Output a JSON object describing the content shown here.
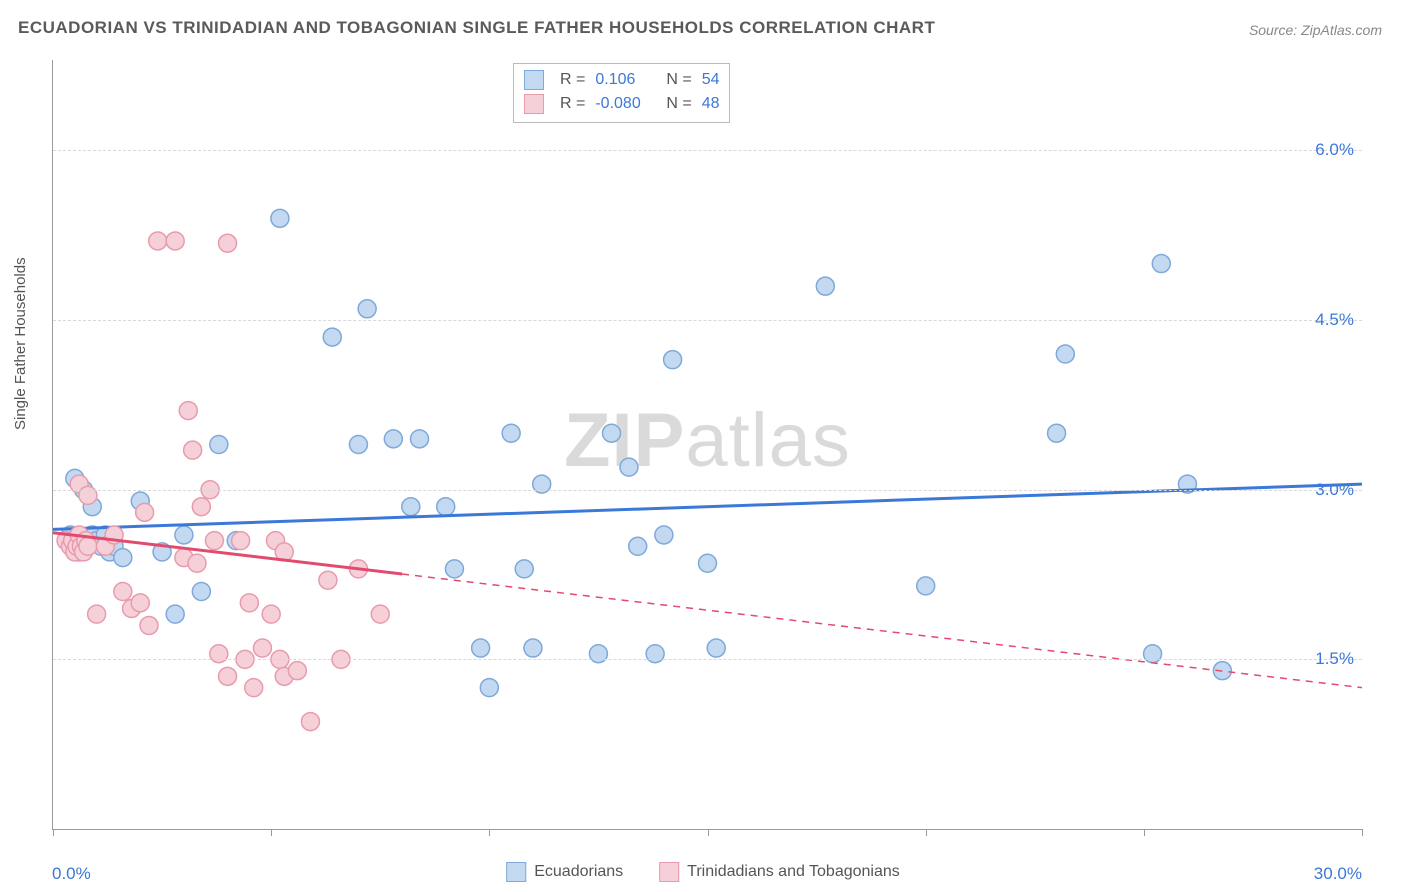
{
  "title": "ECUADORIAN VS TRINIDADIAN AND TOBAGONIAN SINGLE FATHER HOUSEHOLDS CORRELATION CHART",
  "source": "Source: ZipAtlas.com",
  "ylabel": "Single Father Households",
  "watermark_bold": "ZIP",
  "watermark_rest": "atlas",
  "chart": {
    "type": "scatter",
    "xlim": [
      0,
      30
    ],
    "ylim": [
      0,
      6.8
    ],
    "x_ticks": [
      0,
      5,
      10,
      15,
      20,
      25,
      30
    ],
    "y_ticks": [
      1.5,
      3.0,
      4.5,
      6.0
    ],
    "y_tick_labels": [
      "1.5%",
      "3.0%",
      "4.5%",
      "6.0%"
    ],
    "x_min_label": "0.0%",
    "x_max_label": "30.0%",
    "background_color": "#ffffff",
    "grid_color": "#d8d8d8",
    "marker_radius": 9,
    "marker_stroke_width": 1.5,
    "line_width": 3,
    "series": [
      {
        "name": "Ecuadorians",
        "color_fill": "#c3d9f2",
        "color_stroke": "#7fa9d8",
        "line_color": "#3b78d8",
        "R": "0.106",
        "N": "54",
        "trend_start_y": 2.65,
        "trend_end_y": 3.05,
        "trend_solid_until_x": 30,
        "points": [
          [
            0.4,
            2.6
          ],
          [
            0.5,
            2.5
          ],
          [
            0.6,
            2.45
          ],
          [
            0.7,
            2.55
          ],
          [
            0.8,
            2.5
          ],
          [
            0.9,
            2.6
          ],
          [
            1.0,
            2.55
          ],
          [
            1.1,
            2.5
          ],
          [
            1.2,
            2.6
          ],
          [
            1.3,
            2.45
          ],
          [
            0.5,
            3.1
          ],
          [
            0.7,
            3.0
          ],
          [
            0.9,
            2.85
          ],
          [
            1.4,
            2.5
          ],
          [
            1.6,
            2.4
          ],
          [
            2.0,
            2.9
          ],
          [
            2.5,
            2.45
          ],
          [
            2.8,
            1.9
          ],
          [
            3.0,
            2.6
          ],
          [
            3.4,
            2.1
          ],
          [
            3.8,
            3.4
          ],
          [
            4.2,
            2.55
          ],
          [
            5.2,
            5.4
          ],
          [
            6.4,
            4.35
          ],
          [
            7.0,
            3.4
          ],
          [
            7.2,
            4.6
          ],
          [
            7.8,
            3.45
          ],
          [
            8.2,
            2.85
          ],
          [
            8.4,
            3.45
          ],
          [
            9.0,
            2.85
          ],
          [
            9.2,
            2.3
          ],
          [
            9.8,
            1.6
          ],
          [
            10.0,
            1.25
          ],
          [
            10.5,
            3.5
          ],
          [
            10.8,
            2.3
          ],
          [
            11.0,
            1.6
          ],
          [
            11.2,
            3.05
          ],
          [
            12.8,
            3.5
          ],
          [
            12.5,
            1.55
          ],
          [
            13.2,
            3.2
          ],
          [
            13.4,
            2.5
          ],
          [
            13.8,
            1.55
          ],
          [
            14.0,
            2.6
          ],
          [
            14.2,
            4.15
          ],
          [
            15.0,
            2.35
          ],
          [
            15.2,
            1.6
          ],
          [
            17.7,
            4.8
          ],
          [
            20.0,
            2.15
          ],
          [
            23.0,
            3.5
          ],
          [
            23.2,
            4.2
          ],
          [
            25.2,
            1.55
          ],
          [
            25.4,
            5.0
          ],
          [
            26.8,
            1.4
          ],
          [
            26.0,
            3.05
          ]
        ]
      },
      {
        "name": "Trinidadians and Tobagonians",
        "color_fill": "#f6d0d8",
        "color_stroke": "#e89bac",
        "line_color": "#e24a6e",
        "R": "-0.080",
        "N": "48",
        "trend_start_y": 2.62,
        "trend_end_y": 1.25,
        "trend_solid_until_x": 8,
        "points": [
          [
            0.3,
            2.55
          ],
          [
            0.4,
            2.5
          ],
          [
            0.45,
            2.55
          ],
          [
            0.5,
            2.45
          ],
          [
            0.55,
            2.5
          ],
          [
            0.6,
            2.6
          ],
          [
            0.65,
            2.5
          ],
          [
            0.7,
            2.45
          ],
          [
            0.75,
            2.55
          ],
          [
            0.8,
            2.5
          ],
          [
            0.6,
            3.05
          ],
          [
            0.8,
            2.95
          ],
          [
            1.0,
            1.9
          ],
          [
            1.2,
            2.5
          ],
          [
            1.4,
            2.6
          ],
          [
            1.6,
            2.1
          ],
          [
            1.8,
            1.95
          ],
          [
            2.0,
            2.0
          ],
          [
            2.1,
            2.8
          ],
          [
            2.2,
            1.8
          ],
          [
            2.4,
            5.2
          ],
          [
            2.8,
            5.2
          ],
          [
            3.0,
            2.4
          ],
          [
            3.1,
            3.7
          ],
          [
            3.2,
            3.35
          ],
          [
            3.4,
            2.85
          ],
          [
            3.6,
            3.0
          ],
          [
            3.7,
            2.55
          ],
          [
            3.8,
            1.55
          ],
          [
            4.0,
            5.18
          ],
          [
            4.0,
            1.35
          ],
          [
            4.3,
            2.55
          ],
          [
            4.4,
            1.5
          ],
          [
            4.5,
            2.0
          ],
          [
            4.6,
            1.25
          ],
          [
            4.8,
            1.6
          ],
          [
            5.0,
            1.9
          ],
          [
            5.1,
            2.55
          ],
          [
            5.2,
            1.5
          ],
          [
            5.3,
            1.35
          ],
          [
            5.3,
            2.45
          ],
          [
            5.6,
            1.4
          ],
          [
            5.9,
            0.95
          ],
          [
            6.3,
            2.2
          ],
          [
            6.6,
            1.5
          ],
          [
            7.0,
            2.3
          ],
          [
            7.5,
            1.9
          ],
          [
            3.3,
            2.35
          ]
        ]
      }
    ]
  },
  "legend_stats": {
    "r_label": "R =",
    "n_label": "N ="
  }
}
